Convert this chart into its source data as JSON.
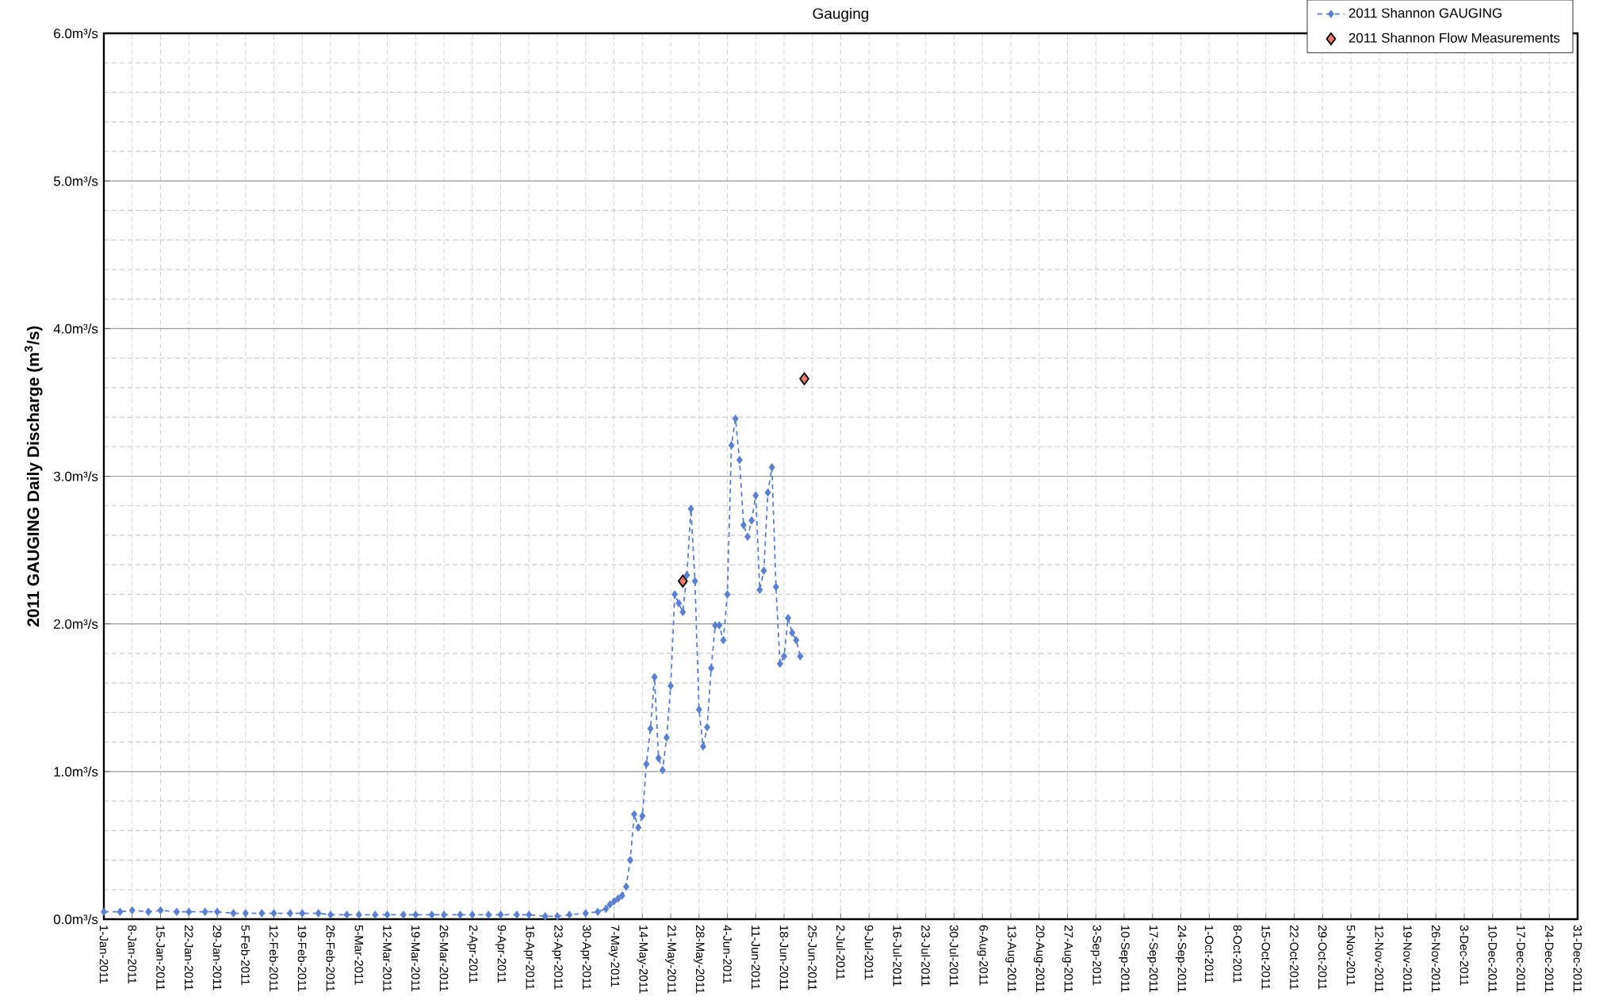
{
  "chart_data": {
    "type": "line",
    "title": "Gauging",
    "ylabel": "2011 GAUGING Daily Discharge (m$^{3}$/s)",
    "xlim": [
      "2011-01-01",
      "2011-12-31"
    ],
    "ylim": [
      0,
      6
    ],
    "yticks": [
      {
        "value": 0,
        "label": "0.0m³/s"
      },
      {
        "value": 1,
        "label": "1.0m³/s"
      },
      {
        "value": 2,
        "label": "2.0m³/s"
      },
      {
        "value": 3,
        "label": "3.0m³/s"
      },
      {
        "value": 4,
        "label": "4.0m³/s"
      },
      {
        "value": 5,
        "label": "5.0m³/s"
      },
      {
        "value": 6,
        "label": "6.0m³/s"
      }
    ],
    "xticks": [
      {
        "value": "2011-01-01",
        "label": "1-Jan-2011"
      },
      {
        "value": "2011-01-08",
        "label": "8-Jan-2011"
      },
      {
        "value": "2011-01-15",
        "label": "15-Jan-2011"
      },
      {
        "value": "2011-01-22",
        "label": "22-Jan-2011"
      },
      {
        "value": "2011-01-29",
        "label": "29-Jan-2011"
      },
      {
        "value": "2011-02-05",
        "label": "5-Feb-2011"
      },
      {
        "value": "2011-02-12",
        "label": "12-Feb-2011"
      },
      {
        "value": "2011-02-19",
        "label": "19-Feb-2011"
      },
      {
        "value": "2011-02-26",
        "label": "26-Feb-2011"
      },
      {
        "value": "2011-03-05",
        "label": "5-Mar-2011"
      },
      {
        "value": "2011-03-12",
        "label": "12-Mar-2011"
      },
      {
        "value": "2011-03-19",
        "label": "19-Mar-2011"
      },
      {
        "value": "2011-03-26",
        "label": "26-Mar-2011"
      },
      {
        "value": "2011-04-02",
        "label": "2-Apr-2011"
      },
      {
        "value": "2011-04-09",
        "label": "9-Apr-2011"
      },
      {
        "value": "2011-04-16",
        "label": "16-Apr-2011"
      },
      {
        "value": "2011-04-23",
        "label": "23-Apr-2011"
      },
      {
        "value": "2011-04-30",
        "label": "30-Apr-2011"
      },
      {
        "value": "2011-05-07",
        "label": "7-May-2011"
      },
      {
        "value": "2011-05-14",
        "label": "14-May-2011"
      },
      {
        "value": "2011-05-21",
        "label": "21-May-2011"
      },
      {
        "value": "2011-05-28",
        "label": "28-May-2011"
      },
      {
        "value": "2011-06-04",
        "label": "4-Jun-2011"
      },
      {
        "value": "2011-06-11",
        "label": "11-Jun-2011"
      },
      {
        "value": "2011-06-18",
        "label": "18-Jun-2011"
      },
      {
        "value": "2011-06-25",
        "label": "25-Jun-2011"
      },
      {
        "value": "2011-07-02",
        "label": "2-Jul-2011"
      },
      {
        "value": "2011-07-09",
        "label": "9-Jul-2011"
      },
      {
        "value": "2011-07-16",
        "label": "16-Jul-2011"
      },
      {
        "value": "2011-07-23",
        "label": "23-Jul-2011"
      },
      {
        "value": "2011-07-30",
        "label": "30-Jul-2011"
      },
      {
        "value": "2011-08-06",
        "label": "6-Aug-2011"
      },
      {
        "value": "2011-08-13",
        "label": "13-Aug-2011"
      },
      {
        "value": "2011-08-20",
        "label": "20-Aug-2011"
      },
      {
        "value": "2011-08-27",
        "label": "27-Aug-2011"
      },
      {
        "value": "2011-09-03",
        "label": "3-Sep-2011"
      },
      {
        "value": "2011-09-10",
        "label": "10-Sep-2011"
      },
      {
        "value": "2011-09-17",
        "label": "17-Sep-2011"
      },
      {
        "value": "2011-09-24",
        "label": "24-Sep-2011"
      },
      {
        "value": "2011-10-01",
        "label": "1-Oct-2011"
      },
      {
        "value": "2011-10-08",
        "label": "8-Oct-2011"
      },
      {
        "value": "2011-10-15",
        "label": "15-Oct-2011"
      },
      {
        "value": "2011-10-22",
        "label": "22-Oct-2011"
      },
      {
        "value": "2011-10-29",
        "label": "29-Oct-2011"
      },
      {
        "value": "2011-11-05",
        "label": "5-Nov-2011"
      },
      {
        "value": "2011-11-12",
        "label": "12-Nov-2011"
      },
      {
        "value": "2011-11-19",
        "label": "19-Nov-2011"
      },
      {
        "value": "2011-11-26",
        "label": "26-Nov-2011"
      },
      {
        "value": "2011-12-03",
        "label": "3-Dec-2011"
      },
      {
        "value": "2011-12-10",
        "label": "10-Dec-2011"
      },
      {
        "value": "2011-12-17",
        "label": "17-Dec-2011"
      },
      {
        "value": "2011-12-24",
        "label": "24-Dec-2011"
      },
      {
        "value": "2011-12-31",
        "label": "31-Dec-2011"
      }
    ],
    "grid": true,
    "legend": "top right",
    "series": [
      {
        "name": "2011 Shannon GAUGING",
        "color": "#5b7fd0",
        "marker": "diamond",
        "line_style": "dashed",
        "x": [
          "2011-01-01",
          "2011-01-05",
          "2011-01-08",
          "2011-01-12",
          "2011-01-15",
          "2011-01-19",
          "2011-01-22",
          "2011-01-26",
          "2011-01-29",
          "2011-02-02",
          "2011-02-05",
          "2011-02-09",
          "2011-02-12",
          "2011-02-16",
          "2011-02-19",
          "2011-02-23",
          "2011-02-26",
          "2011-03-02",
          "2011-03-05",
          "2011-03-09",
          "2011-03-12",
          "2011-03-16",
          "2011-03-19",
          "2011-03-23",
          "2011-03-26",
          "2011-03-30",
          "2011-04-02",
          "2011-04-06",
          "2011-04-09",
          "2011-04-13",
          "2011-04-16",
          "2011-04-20",
          "2011-04-23",
          "2011-04-26",
          "2011-04-30",
          "2011-05-03",
          "2011-05-05",
          "2011-05-06",
          "2011-05-07",
          "2011-05-08",
          "2011-05-09",
          "2011-05-10",
          "2011-05-11",
          "2011-05-12",
          "2011-05-13",
          "2011-05-14",
          "2011-05-15",
          "2011-05-16",
          "2011-05-17",
          "2011-05-18",
          "2011-05-19",
          "2011-05-20",
          "2011-05-21",
          "2011-05-22",
          "2011-05-23",
          "2011-05-24",
          "2011-05-25",
          "2011-05-26",
          "2011-05-27",
          "2011-05-28",
          "2011-05-29",
          "2011-05-30",
          "2011-05-31",
          "2011-06-01",
          "2011-06-02",
          "2011-06-03",
          "2011-06-04",
          "2011-06-05",
          "2011-06-06",
          "2011-06-07",
          "2011-06-08",
          "2011-06-09",
          "2011-06-10",
          "2011-06-11",
          "2011-06-12",
          "2011-06-13",
          "2011-06-14",
          "2011-06-15",
          "2011-06-16",
          "2011-06-17",
          "2011-06-18",
          "2011-06-19",
          "2011-06-20",
          "2011-06-21",
          "2011-06-22"
        ],
        "values": [
          0.05,
          0.05,
          0.06,
          0.05,
          0.06,
          0.05,
          0.05,
          0.05,
          0.05,
          0.04,
          0.04,
          0.04,
          0.04,
          0.04,
          0.04,
          0.04,
          0.03,
          0.03,
          0.03,
          0.03,
          0.03,
          0.03,
          0.03,
          0.03,
          0.03,
          0.03,
          0.03,
          0.03,
          0.03,
          0.03,
          0.03,
          0.02,
          0.02,
          0.03,
          0.04,
          0.05,
          0.07,
          0.1,
          0.12,
          0.14,
          0.16,
          0.22,
          0.4,
          0.71,
          0.62,
          0.7,
          1.05,
          1.29,
          1.64,
          1.09,
          1.01,
          1.23,
          1.58,
          2.2,
          2.14,
          2.08,
          2.33,
          2.78,
          2.29,
          1.42,
          1.17,
          1.3,
          1.7,
          1.99,
          1.99,
          1.89,
          2.2,
          3.21,
          3.39,
          3.11,
          2.67,
          2.59,
          2.7,
          2.87,
          2.23,
          2.36,
          2.89,
          3.06,
          2.25,
          1.73,
          1.78,
          2.04,
          1.94,
          1.89,
          1.78
        ]
      },
      {
        "name": "2011 Shannon Flow Measurements",
        "type": "scatter",
        "color": "#f07b6b",
        "marker": "diamond",
        "x": [
          "2011-05-24",
          "2011-06-23"
        ],
        "values": [
          2.29,
          3.66
        ]
      }
    ]
  }
}
